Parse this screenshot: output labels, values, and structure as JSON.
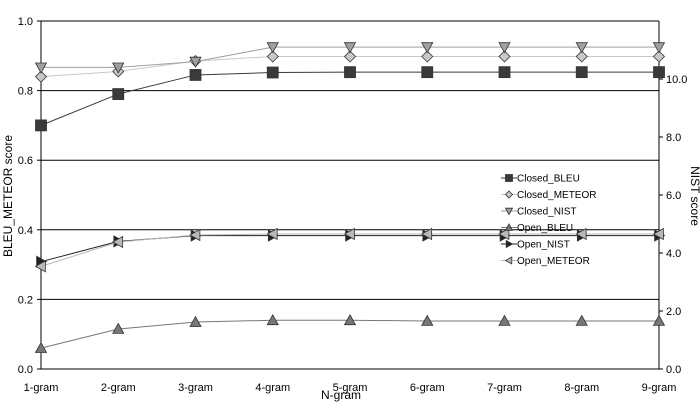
{
  "chart_data": {
    "type": "line",
    "categories": [
      "1-gram",
      "2-gram",
      "3-gram",
      "4-gram",
      "5-gram",
      "6-gram",
      "7-gram",
      "8-gram",
      "9-gram"
    ],
    "xlabel": "N-gram",
    "ylabel": "BLEU_METEOR score",
    "y2label": "NIST score",
    "ylim": [
      0.0,
      1.0
    ],
    "y2lim": [
      0.0,
      12.0
    ],
    "yticks": [
      "0.0",
      "0.2",
      "0.4",
      "0.6",
      "0.8",
      "1.0"
    ],
    "y2ticks": [
      "0.0",
      "2.0",
      "4.0",
      "6.0",
      "8.0",
      "10.0"
    ],
    "grid": "horizontal",
    "legend_position": "center-right",
    "series": [
      {
        "name": "Closed_BLEU",
        "axis": "left",
        "marker": "square",
        "color": "#3a3a3a",
        "values": [
          0.7,
          0.79,
          0.845,
          0.852,
          0.853,
          0.853,
          0.853,
          0.853,
          0.853
        ]
      },
      {
        "name": "Closed_METEOR",
        "axis": "left",
        "marker": "diamond",
        "color": "#c8c8c8",
        "values": [
          0.84,
          0.855,
          0.885,
          0.898,
          0.898,
          0.898,
          0.898,
          0.898,
          0.898
        ]
      },
      {
        "name": "Closed_NIST",
        "axis": "right",
        "marker": "triangle-down",
        "color": "#a0a0a0",
        "values": [
          10.4,
          10.4,
          10.6,
          11.1,
          11.1,
          11.1,
          11.1,
          11.1,
          11.1
        ]
      },
      {
        "name": "Open_BLEU",
        "axis": "left",
        "marker": "triangle-up",
        "color": "#777777",
        "values": [
          0.06,
          0.115,
          0.135,
          0.14,
          0.14,
          0.138,
          0.138,
          0.138,
          0.138
        ]
      },
      {
        "name": "Open_NIST",
        "axis": "right",
        "marker": "triangle-right",
        "color": "#222222",
        "values": [
          3.7,
          4.4,
          4.6,
          4.6,
          4.6,
          4.6,
          4.6,
          4.6,
          4.6
        ]
      },
      {
        "name": "Open_METEOR",
        "axis": "left",
        "marker": "triangle-left",
        "color": "#b8b8b8",
        "values": [
          0.295,
          0.365,
          0.385,
          0.388,
          0.388,
          0.388,
          0.388,
          0.388,
          0.388
        ]
      }
    ]
  }
}
